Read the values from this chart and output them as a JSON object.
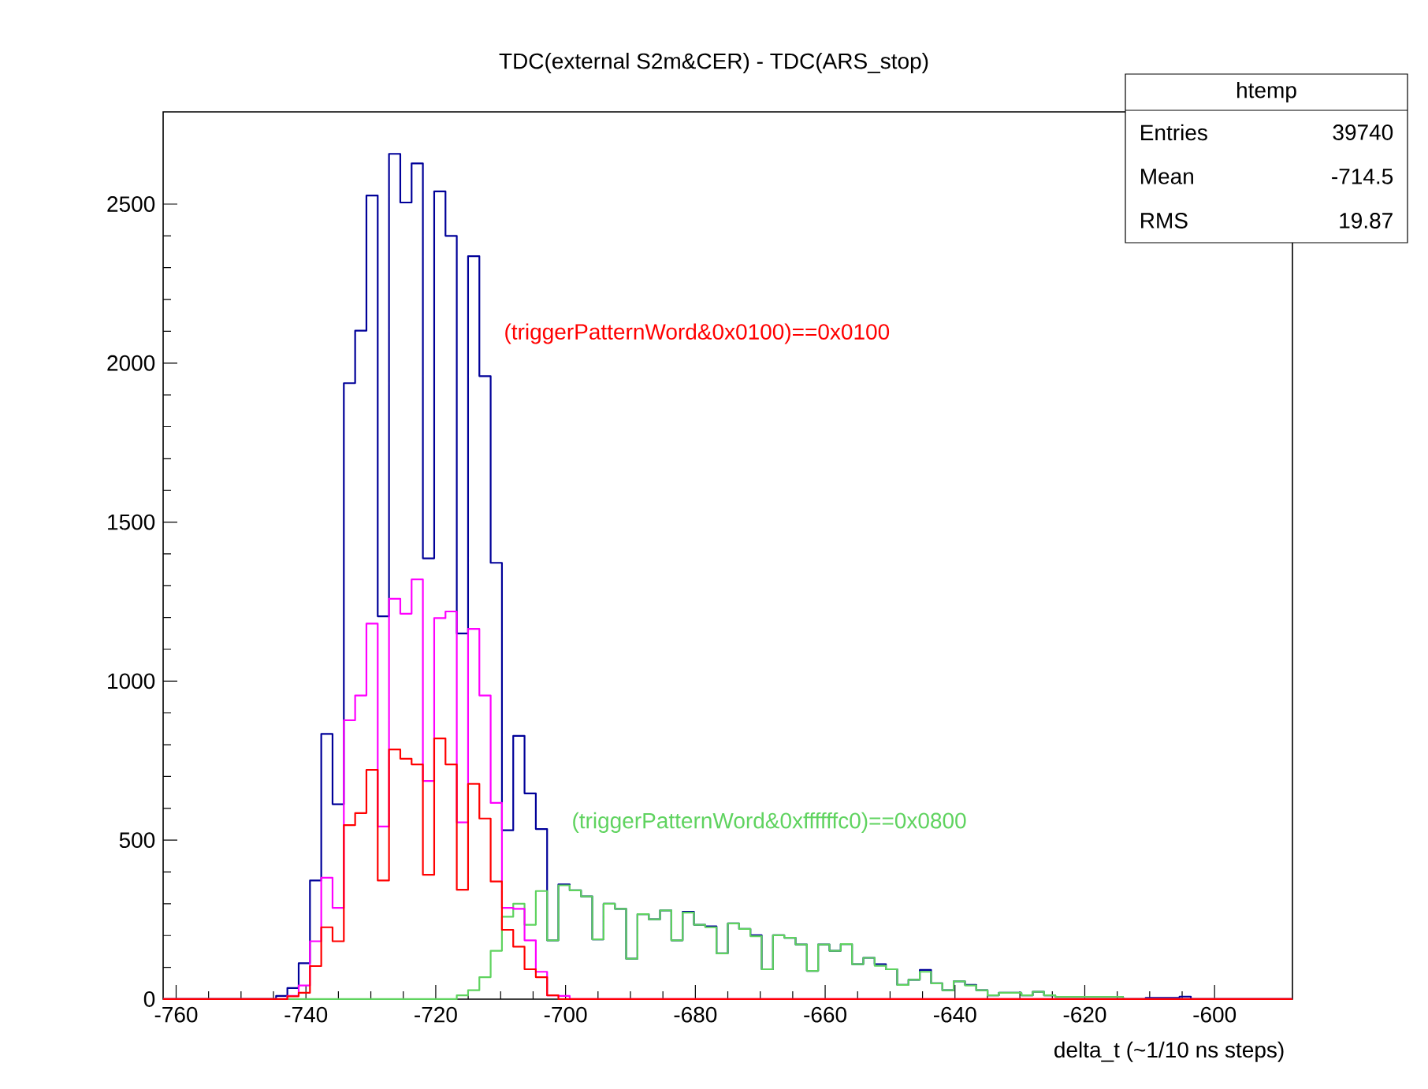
{
  "chart_data": {
    "type": "histogram",
    "title": "TDC(external S2m&CER) - TDC(ARS_stop)",
    "xlabel": "delta_t (~1/10 ns steps)",
    "bins": [
      -762,
      -760.26,
      -758.52,
      -756.78,
      -755.04,
      -753.3,
      -751.56,
      -749.82,
      -748.08,
      -746.34,
      -744.6,
      -742.86,
      -741.12,
      -739.38,
      -737.64,
      -735.9,
      -734.16,
      -732.42,
      -730.68,
      -728.94,
      -727.2,
      -725.46,
      -723.72,
      -721.98,
      -720.24,
      -718.5,
      -716.76,
      -715.02,
      -713.28,
      -711.54,
      -709.8,
      -708.06,
      -706.32,
      -704.58,
      -702.84,
      -701.1,
      -699.36,
      -697.62,
      -695.88,
      -694.14,
      -692.4,
      -690.66,
      -688.92,
      -687.18,
      -685.44,
      -683.7,
      -681.96,
      -680.22,
      -678.48,
      -676.74,
      -675,
      -673.26,
      -671.52,
      -669.78,
      -668.04,
      -666.3,
      -664.56,
      -662.82,
      -661.08,
      -659.34,
      -657.6,
      -655.86,
      -654.12,
      -652.38,
      -650.64,
      -648.9,
      -647.16,
      -645.42,
      -643.68,
      -641.94,
      -640.2,
      -638.46,
      -636.72,
      -634.98,
      -633.24,
      -631.5,
      -629.76,
      -628.02,
      -626.28,
      -624.54,
      -622.8,
      -621.06,
      -619.32,
      -617.58,
      -615.84,
      -614.1,
      -612.36,
      -610.62,
      -608.88,
      -607.14,
      -605.4,
      -603.66,
      -601.92,
      -600.18,
      -598.44,
      -596.7,
      -594.96,
      -593.22,
      -591.48,
      -589.74,
      -588
    ],
    "series": [
      {
        "color": "#000099",
        "values": [
          0,
          0,
          0,
          0,
          0,
          0,
          0,
          0,
          0,
          0,
          10,
          35,
          113,
          373,
          834,
          613,
          1937,
          2102,
          2527,
          1204,
          2658,
          2505,
          2628,
          1386,
          2540,
          2400,
          1150,
          2336,
          1959,
          1372,
          531,
          828,
          647,
          535,
          185,
          361,
          342,
          323,
          188,
          300,
          284,
          127,
          267,
          251,
          279,
          185,
          275,
          234,
          229,
          144,
          238,
          221,
          201,
          94,
          201,
          193,
          172,
          89,
          172,
          152,
          173,
          110,
          130,
          110,
          94,
          45,
          61,
          92,
          50,
          28,
          56,
          45,
          28,
          12,
          20,
          20,
          12,
          23,
          12,
          7,
          7,
          7,
          7,
          7,
          7,
          0,
          0,
          4,
          4,
          4,
          8,
          0,
          0,
          0,
          0,
          0,
          0,
          0,
          0,
          0
        ]
      },
      {
        "color": "#5fd35f",
        "values": [
          0,
          0,
          0,
          0,
          0,
          0,
          0,
          0,
          0,
          0,
          0,
          0,
          0,
          0,
          0,
          0,
          0,
          0,
          0,
          0,
          0,
          0,
          0,
          0,
          0,
          0,
          12,
          28,
          69,
          152,
          259,
          300,
          234,
          340,
          185,
          358,
          342,
          323,
          188,
          300,
          284,
          127,
          267,
          251,
          279,
          185,
          272,
          234,
          226,
          144,
          238,
          221,
          198,
          94,
          201,
          193,
          172,
          89,
          172,
          152,
          173,
          110,
          130,
          105,
          94,
          45,
          61,
          86,
          50,
          28,
          56,
          43,
          28,
          12,
          20,
          20,
          12,
          23,
          12,
          7,
          7,
          7,
          7,
          7,
          7,
          0,
          0,
          0,
          0,
          0,
          0,
          0,
          0,
          0,
          0,
          0,
          0,
          0,
          0,
          0
        ]
      },
      {
        "color": "#ff00ff",
        "values": [
          0,
          0,
          0,
          0,
          0,
          0,
          0,
          0,
          0,
          0,
          0,
          10,
          43,
          182,
          382,
          287,
          877,
          955,
          1181,
          543,
          1259,
          1212,
          1320,
          686,
          1198,
          1219,
          556,
          1164,
          955,
          617,
          287,
          284,
          185,
          86,
          12,
          10,
          0,
          0,
          0,
          0,
          0,
          0,
          0,
          0,
          0,
          0,
          0,
          0,
          0,
          0,
          0,
          0,
          0,
          0,
          0,
          0,
          0,
          0,
          0,
          0,
          0,
          0,
          0,
          0,
          0,
          0,
          0,
          0,
          0,
          0,
          0,
          0,
          0,
          0,
          0,
          0,
          0,
          0,
          0,
          0,
          0,
          0,
          0,
          0,
          0,
          0,
          0,
          0,
          0,
          0,
          0,
          0,
          0,
          0,
          0,
          0,
          0,
          0,
          0,
          0
        ]
      },
      {
        "color": "#ff0000",
        "values": [
          0,
          0,
          0,
          0,
          0,
          0,
          0,
          0,
          0,
          0,
          0,
          9,
          20,
          104,
          226,
          182,
          547,
          585,
          721,
          373,
          785,
          756,
          738,
          391,
          820,
          738,
          344,
          677,
          568,
          370,
          218,
          165,
          94,
          69,
          12,
          0,
          0,
          0,
          0,
          0,
          0,
          0,
          0,
          0,
          0,
          0,
          0,
          0,
          0,
          0,
          0,
          0,
          0,
          0,
          0,
          0,
          0,
          0,
          0,
          0,
          0,
          0,
          0,
          0,
          0,
          0,
          0,
          0,
          0,
          0,
          0,
          0,
          0,
          0,
          0,
          0,
          0,
          0,
          0,
          0,
          0,
          0,
          0,
          0,
          0,
          0,
          0,
          0,
          0,
          0,
          0,
          0,
          0,
          0,
          0,
          0,
          0,
          0,
          0,
          0
        ]
      }
    ],
    "xlim": [
      -762,
      -588
    ],
    "ylim": [
      0,
      2790
    ],
    "xticks": [
      -760,
      -740,
      -720,
      -700,
      -680,
      -660,
      -640,
      -620,
      -600
    ],
    "yticks": [
      0,
      500,
      1000,
      1500,
      2000,
      2500
    ],
    "annotations": [
      "(triggerPatternWord&0x0100)==0x0100",
      "(triggerPatternWord&0xffffffc0)==0x0800",
      "htemp",
      "Entries",
      "39740",
      "Mean",
      "-714.5",
      "RMS",
      "19.87"
    ]
  }
}
